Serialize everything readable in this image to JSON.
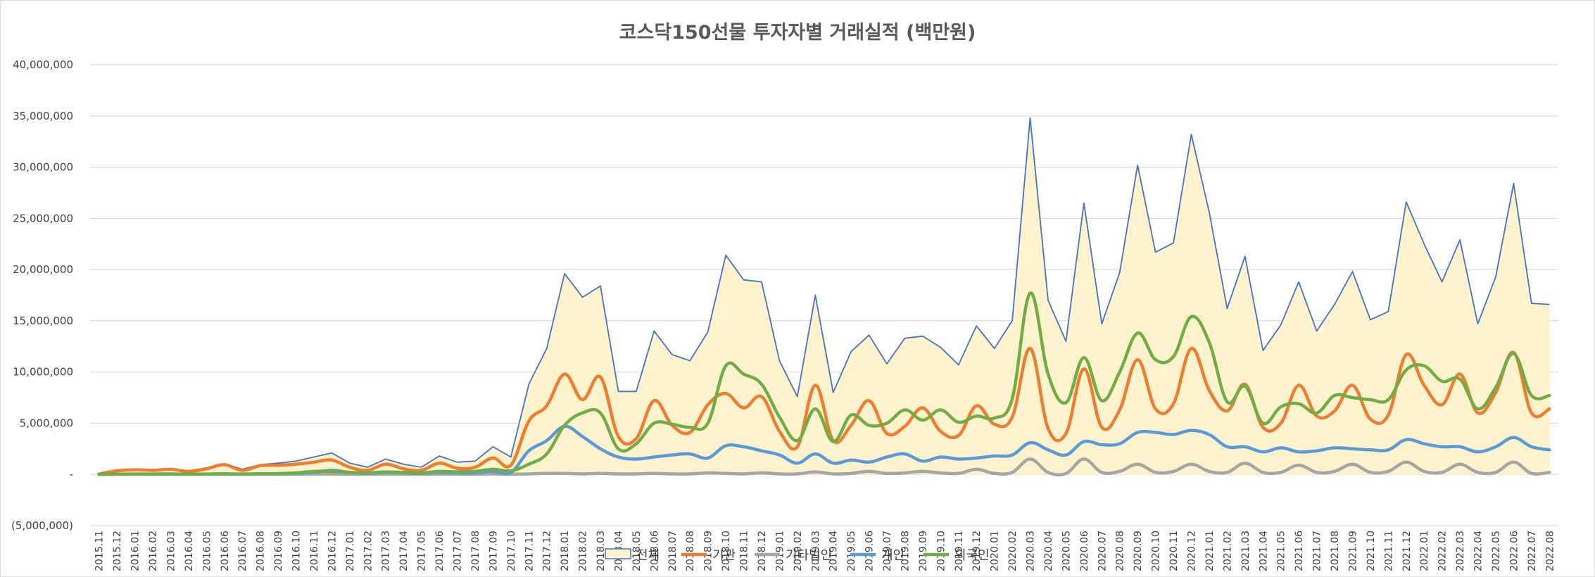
{
  "chart_data": {
    "type": "line",
    "title": "코스닥150선물 투자자별 거래실적 (백만원)",
    "xlabel": "",
    "ylabel": "",
    "ylim": [
      -5000000,
      40000000
    ],
    "yticks": [
      -5000000,
      0,
      5000000,
      10000000,
      15000000,
      20000000,
      25000000,
      30000000,
      35000000,
      40000000
    ],
    "ytick_labels": [
      "(5,000,000)",
      "-",
      "5,000,000",
      "10,000,000",
      "15,000,000",
      "20,000,000",
      "25,000,000",
      "30,000,000",
      "35,000,000",
      "40,000,000"
    ],
    "grid": true,
    "legend_position": "bottom",
    "categories": [
      "2015.11",
      "2015.12",
      "2016.01",
      "2016.02",
      "2016.03",
      "2016.04",
      "2016.05",
      "2016.06",
      "2016.07",
      "2016.08",
      "2016.09",
      "2016.10",
      "2016.11",
      "2016.12",
      "2017.01",
      "2017.02",
      "2017.03",
      "2017.04",
      "2017.05",
      "2017.06",
      "2017.07",
      "2017.08",
      "2017.09",
      "2017.10",
      "2017.11",
      "2017.12",
      "2018.01",
      "2018.02",
      "2018.03",
      "2018.04",
      "2018.05",
      "2018.06",
      "2018.07",
      "2018.08",
      "2018.09",
      "2018.10",
      "2018.11",
      "2018.12",
      "2019.01",
      "2019.02",
      "2019.03",
      "2019.04",
      "2019.05",
      "2019.06",
      "2019.07",
      "2019.08",
      "2019.09",
      "2019.10",
      "2019.11",
      "2019.12",
      "2020.01",
      "2020.02",
      "2020.03",
      "2020.04",
      "2020.05",
      "2020.06",
      "2020.07",
      "2020.08",
      "2020.09",
      "2020.10",
      "2020.11",
      "2020.12",
      "2021.01",
      "2021.02",
      "2021.03",
      "2021.04",
      "2021.05",
      "2021.06",
      "2021.07",
      "2021.08",
      "2021.09",
      "2021.10",
      "2021.11",
      "2021.12",
      "2022.01",
      "2022.02",
      "2022.03",
      "2022.04",
      "2022.05",
      "2022.06",
      "2022.07",
      "2022.08"
    ],
    "series": [
      {
        "name": "전체",
        "style": "area",
        "color": "#4472c4",
        "fill": "#fff2cc",
        "values": [
          100000,
          400000,
          500000,
          450000,
          550000,
          350000,
          650000,
          1050000,
          500000,
          950000,
          1100000,
          1300000,
          1700000,
          2100000,
          1100000,
          700000,
          1500000,
          1000000,
          700000,
          1800000,
          1200000,
          1300000,
          2700000,
          1700000,
          8800000,
          12300000,
          19600000,
          17300000,
          18400000,
          8100000,
          8100000,
          14000000,
          11700000,
          11100000,
          13900000,
          21400000,
          19000000,
          18800000,
          11100000,
          7600000,
          17500000,
          8000000,
          12000000,
          13600000,
          10800000,
          13300000,
          13500000,
          12400000,
          10700000,
          14500000,
          12300000,
          15000000,
          34800000,
          17000000,
          13000000,
          26500000,
          14700000,
          19700000,
          30200000,
          21700000,
          22600000,
          33200000,
          25600000,
          16200000,
          21300000,
          12100000,
          14600000,
          18800000,
          14000000,
          16600000,
          19800000,
          15100000,
          15900000,
          26600000,
          22500000,
          18800000,
          22900000,
          14700000,
          19300000,
          28400000,
          16700000,
          16600000
        ]
      },
      {
        "name": "기관",
        "color": "#ed7d31",
        "values": [
          50000,
          350000,
          450000,
          400000,
          500000,
          300000,
          550000,
          950000,
          400000,
          850000,
          900000,
          1000000,
          1200000,
          1400000,
          700000,
          400000,
          1000000,
          550000,
          400000,
          1100000,
          600000,
          700000,
          1600000,
          900000,
          5200000,
          6700000,
          9800000,
          7300000,
          9500000,
          3700000,
          3500000,
          7200000,
          4800000,
          4100000,
          6800000,
          7900000,
          6500000,
          7600000,
          4200000,
          2700000,
          8700000,
          3300000,
          4800000,
          7200000,
          4000000,
          4700000,
          6500000,
          4200000,
          3800000,
          6700000,
          4900000,
          5600000,
          12300000,
          4500000,
          4000000,
          10300000,
          4600000,
          6300000,
          11200000,
          6400000,
          6900000,
          12300000,
          8200000,
          6200000,
          8800000,
          4600000,
          5000000,
          8700000,
          5700000,
          6200000,
          8700000,
          5400000,
          5800000,
          11700000,
          8700000,
          6800000,
          9800000,
          6000000,
          8000000,
          11900000,
          6000000,
          6400000
        ]
      },
      {
        "name": "기타법인",
        "color": "#a5a5a5",
        "values": [
          0,
          20000,
          30000,
          20000,
          30000,
          20000,
          30000,
          30000,
          20000,
          30000,
          30000,
          30000,
          40000,
          40000,
          30000,
          20000,
          40000,
          30000,
          20000,
          40000,
          30000,
          30000,
          50000,
          30000,
          50000,
          100000,
          100000,
          50000,
          100000,
          50000,
          50000,
          100000,
          50000,
          50000,
          150000,
          100000,
          50000,
          150000,
          50000,
          50000,
          250000,
          50000,
          100000,
          300000,
          100000,
          150000,
          300000,
          150000,
          100000,
          500000,
          100000,
          200000,
          1500000,
          200000,
          100000,
          1500000,
          200000,
          300000,
          1000000,
          200000,
          300000,
          1000000,
          300000,
          200000,
          1100000,
          200000,
          200000,
          900000,
          200000,
          300000,
          1000000,
          200000,
          300000,
          1200000,
          300000,
          200000,
          1000000,
          200000,
          200000,
          1200000,
          100000,
          200000
        ]
      },
      {
        "name": "개인",
        "color": "#5b9bd5",
        "values": [
          20000,
          30000,
          40000,
          40000,
          50000,
          30000,
          40000,
          60000,
          40000,
          60000,
          80000,
          120000,
          200000,
          400000,
          200000,
          100000,
          200000,
          150000,
          100000,
          200000,
          150000,
          150000,
          300000,
          200000,
          2300000,
          3300000,
          4700000,
          3700000,
          2500000,
          1700000,
          1500000,
          1700000,
          1900000,
          2000000,
          1600000,
          2800000,
          2700000,
          2300000,
          1900000,
          1100000,
          2000000,
          1100000,
          1400000,
          1200000,
          1700000,
          2000000,
          1300000,
          1700000,
          1500000,
          1600000,
          1800000,
          1900000,
          3100000,
          2400000,
          1900000,
          3200000,
          2900000,
          3000000,
          4100000,
          4100000,
          3900000,
          4300000,
          3900000,
          2700000,
          2700000,
          2200000,
          2600000,
          2200000,
          2300000,
          2600000,
          2500000,
          2400000,
          2400000,
          3400000,
          3000000,
          2700000,
          2700000,
          2200000,
          2700000,
          3600000,
          2700000,
          2400000
        ]
      },
      {
        "name": "외국인",
        "color": "#70ad47",
        "values": [
          10000,
          20000,
          30000,
          20000,
          30000,
          20000,
          30000,
          40000,
          30000,
          50000,
          80000,
          150000,
          300000,
          300000,
          200000,
          150000,
          250000,
          200000,
          150000,
          300000,
          250000,
          300000,
          500000,
          350000,
          1000000,
          2000000,
          4800000,
          6000000,
          6000000,
          2500000,
          3000000,
          5000000,
          4900000,
          4600000,
          5000000,
          10600000,
          9800000,
          8800000,
          5600000,
          3300000,
          6400000,
          3200000,
          5800000,
          4800000,
          5000000,
          6300000,
          5300000,
          6300000,
          5100000,
          5700000,
          5500000,
          7400000,
          17700000,
          9800000,
          7000000,
          11400000,
          7200000,
          10000000,
          13800000,
          11200000,
          11500000,
          15400000,
          12900000,
          7100000,
          8600000,
          5000000,
          6600000,
          6900000,
          6000000,
          7700000,
          7500000,
          7300000,
          7300000,
          10200000,
          10600000,
          9100000,
          9300000,
          6400000,
          8500000,
          11800000,
          7700000,
          7700000
        ]
      }
    ]
  }
}
